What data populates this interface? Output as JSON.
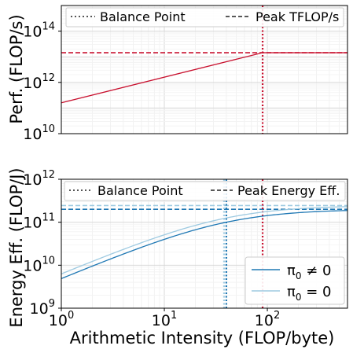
{
  "chart_data": [
    {
      "type": "line",
      "ylabel": "Perf. (FLOP/s)",
      "xlabel": "",
      "xscale": "log",
      "yscale": "log",
      "xlim": [
        1,
        600
      ],
      "ylim": [
        10000000000.0,
        1000000000000000.0
      ],
      "yticks": [
        {
          "value": 10000000000.0,
          "base": "10",
          "exp": "10"
        },
        {
          "value": 1000000000000.0,
          "base": "10",
          "exp": "12"
        },
        {
          "value": 100000000000000.0,
          "base": "10",
          "exp": "14"
        }
      ],
      "grid": true,
      "legend_position": "top",
      "legend": [
        {
          "label": "Balance Point",
          "style": "dotted"
        },
        {
          "label": "Peak TFLOP/s",
          "style": "dashed"
        }
      ],
      "series": [
        {
          "x": [
            1,
            90,
            600
          ],
          "y": [
            160000000000.0,
            14400000000000.0,
            14400000000000.0
          ],
          "color": "#c8102e"
        }
      ],
      "hlines": [
        {
          "y": 14400000000000.0,
          "color": "#c8102e",
          "style": "dashed"
        }
      ],
      "vlines": [
        {
          "x": 90,
          "color": "#c8102e",
          "style": "dotted"
        }
      ]
    },
    {
      "type": "line",
      "ylabel": "Energy Eff. (FLOP/J)",
      "xlabel": "Arithmetic Intensity (FLOP/byte)",
      "xscale": "log",
      "yscale": "log",
      "xlim": [
        1,
        600
      ],
      "ylim": [
        1000000000.0,
        1000000000000.0
      ],
      "xticks": [
        {
          "value": 1,
          "base": "10",
          "exp": "0"
        },
        {
          "value": 10,
          "base": "10",
          "exp": "1"
        },
        {
          "value": 100,
          "base": "10",
          "exp": "2"
        }
      ],
      "yticks": [
        {
          "value": 1000000000.0,
          "base": "10",
          "exp": "9"
        },
        {
          "value": 10000000000.0,
          "base": "10",
          "exp": "10"
        },
        {
          "value": 100000000000.0,
          "base": "10",
          "exp": "11"
        },
        {
          "value": 1000000000000.0,
          "base": "10",
          "exp": "12"
        }
      ],
      "grid": true,
      "legend_position": "top",
      "legend": [
        {
          "label": "Balance Point",
          "style": "dotted"
        },
        {
          "label": "Peak Energy Eff.",
          "style": "dashed"
        }
      ],
      "series_legend_position": "lower-right",
      "series": [
        {
          "name": "π₀ ≠ 0",
          "name_main": "π",
          "name_sub": "0",
          "name_rest": " ≠ 0",
          "color": "#1f78b4",
          "peak": 200000000000.0,
          "balance": 40,
          "hidden_balance": 90
        },
        {
          "name": "π₀ = 0",
          "name_main": "π",
          "name_sub": "0",
          "name_rest": " = 0",
          "color": "#9ecae1",
          "peak": 245000000000.0,
          "balance": 38
        }
      ],
      "hlines": [
        {
          "y": 200000000000.0,
          "color": "#1f78b4",
          "style": "dashed"
        },
        {
          "y": 245000000000.0,
          "color": "#9ecae1",
          "style": "dashed"
        }
      ],
      "vlines": [
        {
          "x": 90,
          "color": "#c8102e",
          "style": "dotted"
        },
        {
          "x": 40,
          "color": "#1f78b4",
          "style": "dotted"
        },
        {
          "x": 38,
          "color": "#9ecae1",
          "style": "dotted"
        }
      ]
    }
  ]
}
